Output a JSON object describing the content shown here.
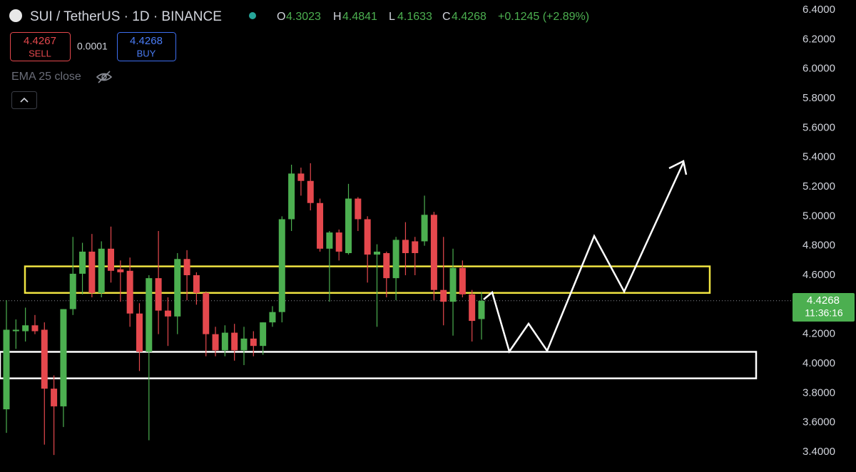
{
  "header": {
    "title": "SUI / TetherUS · 1D · BINANCE",
    "ohlc": [
      {
        "key": "O",
        "value": "4.3023"
      },
      {
        "key": "H",
        "value": "4.4841"
      },
      {
        "key": "L",
        "value": "4.1633"
      },
      {
        "key": "C",
        "value": "4.4268"
      }
    ],
    "change": "+0.1245 (+2.89%)"
  },
  "trade": {
    "sell_price": "4.4267",
    "sell_label": "SELL",
    "spread": "0.0001",
    "buy_price": "4.4268",
    "buy_label": "BUY"
  },
  "indicator": "EMA 25 close",
  "price_tag": {
    "price": "4.4268",
    "countdown": "11:36:16"
  },
  "chart_data": {
    "type": "candlestick",
    "up_color": "#4caf50",
    "down_color": "#e5484d",
    "open": [
      3.69,
      4.22,
      4.22,
      4.26,
      4.23,
      3.83,
      3.71,
      4.37,
      4.61,
      4.76,
      4.48,
      4.78,
      4.64,
      4.63,
      4.34,
      4.08,
      4.58,
      4.36,
      4.32,
      4.71,
      4.6,
      4.48,
      4.2,
      4.09,
      4.21,
      4.09,
      4.17,
      4.12,
      4.28,
      4.35,
      4.98,
      5.29,
      5.24,
      5.09,
      4.78,
      4.89,
      4.75,
      5.12,
      4.98,
      4.74,
      4.75,
      4.58,
      4.84,
      4.83,
      4.83,
      5.01,
      4.5,
      4.42,
      4.65,
      4.47,
      4.3023
    ],
    "high": [
      4.43,
      4.3,
      4.38,
      4.33,
      4.28,
      3.92,
      4.37,
      4.86,
      4.82,
      4.88,
      4.83,
      4.93,
      4.7,
      4.72,
      4.41,
      4.6,
      4.9,
      4.45,
      4.75,
      4.77,
      4.62,
      4.49,
      4.25,
      4.26,
      4.27,
      4.25,
      4.22,
      4.28,
      4.39,
      5.0,
      5.35,
      5.33,
      5.36,
      5.12,
      4.9,
      4.91,
      5.22,
      5.13,
      5.0,
      4.81,
      4.76,
      4.86,
      4.96,
      4.86,
      5.14,
      5.03,
      4.86,
      4.78,
      4.7,
      4.5,
      4.4841
    ],
    "low": [
      3.53,
      4.1,
      4.15,
      4.2,
      3.45,
      3.38,
      3.57,
      4.33,
      4.47,
      4.45,
      4.45,
      4.55,
      4.42,
      4.25,
      3.95,
      3.48,
      4.2,
      4.12,
      4.2,
      4.43,
      4.4,
      4.05,
      4.05,
      4.05,
      4.02,
      3.99,
      4.05,
      4.06,
      4.25,
      4.28,
      4.9,
      5.14,
      5.04,
      4.76,
      4.42,
      4.7,
      4.74,
      4.9,
      4.55,
      4.25,
      4.45,
      4.43,
      4.6,
      4.6,
      4.8,
      4.43,
      4.26,
      4.19,
      4.45,
      4.15,
      4.1633
    ],
    "close": [
      4.23,
      4.23,
      4.26,
      4.22,
      3.83,
      3.71,
      4.37,
      4.61,
      4.76,
      4.48,
      4.78,
      4.63,
      4.62,
      4.34,
      4.08,
      4.58,
      4.36,
      4.32,
      4.71,
      4.6,
      4.48,
      4.2,
      4.09,
      4.21,
      4.09,
      4.17,
      4.12,
      4.28,
      4.35,
      4.98,
      5.29,
      5.24,
      5.09,
      4.78,
      4.89,
      4.76,
      5.12,
      4.98,
      4.74,
      4.76,
      4.58,
      4.84,
      4.75,
      4.75,
      5.01,
      4.5,
      4.42,
      4.65,
      4.47,
      4.29,
      4.4268
    ],
    "ylim": [
      3.4,
      6.4
    ],
    "yticks": [
      {
        "value": 3.4,
        "label": "3.4000"
      },
      {
        "value": 3.6,
        "label": "3.6000"
      },
      {
        "value": 3.8,
        "label": "3.8000"
      },
      {
        "value": 4.0,
        "label": "4.0000"
      },
      {
        "value": 4.2,
        "label": "4.2000"
      },
      {
        "value": 4.4,
        "label": "4.4000"
      },
      {
        "value": 4.6,
        "label": "4.6000"
      },
      {
        "value": 4.8,
        "label": "4.8000"
      },
      {
        "value": 5.0,
        "label": "5.0000"
      },
      {
        "value": 5.2,
        "label": "5.2000"
      },
      {
        "value": 5.4,
        "label": "5.4000"
      },
      {
        "value": 5.6,
        "label": "5.6000"
      },
      {
        "value": 5.8,
        "label": "5.8000"
      },
      {
        "value": 6.0,
        "label": "6.0000"
      },
      {
        "value": 6.2,
        "label": "6.2000"
      },
      {
        "value": 6.4,
        "label": "6.4000"
      }
    ],
    "last_price": 4.4268,
    "zones": [
      {
        "low": 4.48,
        "high": 4.66,
        "color": "#f0e442"
      },
      {
        "low": 3.9,
        "high": 4.08,
        "color": "#ffffff"
      }
    ]
  }
}
